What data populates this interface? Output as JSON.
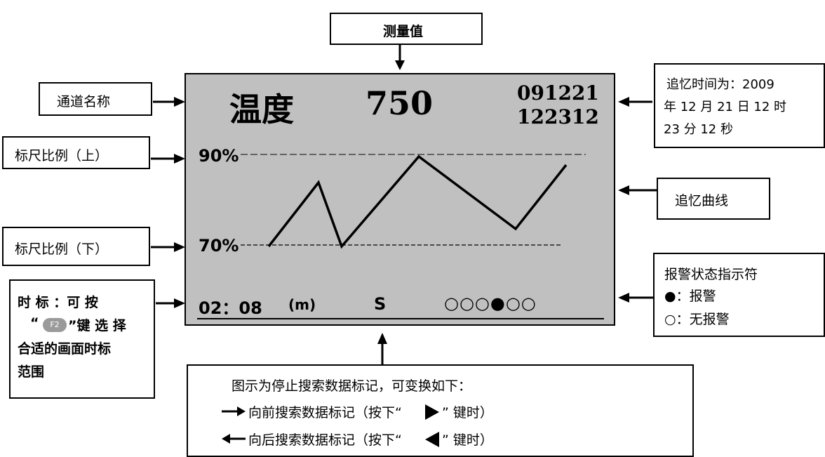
{
  "top_label": "测量值",
  "left_labels": {
    "channel_name": "通道名称",
    "scale_upper": "标尺比例（上）",
    "scale_lower": "标尺比例（下）",
    "time_scale": [
      "时 标 ：可 按",
      "“",
      "”键 选 择",
      "合适的画面时标",
      "范围"
    ],
    "f2_key": "F2"
  },
  "right_labels": {
    "recall_time": [
      "追忆时间为：2009",
      "年 12 月 21 日 12 时",
      "23 分 12 秒"
    ],
    "recall_curve": "追忆曲线",
    "alarm": [
      "报警状态指示符",
      "●：报警",
      "○：无报警"
    ]
  },
  "bottom_labels": {
    "line1": "图示为停止搜索数据标记，可变换如下：",
    "line2": "向前搜索数据标记（按下“",
    "line2b": "” 键时）",
    "line3": "向后搜索数据标记（按下“",
    "line3b": "” 键时）"
  },
  "screen": {
    "channel": "温度",
    "value": "750",
    "date": "091221",
    "time": "122312",
    "upper_scale": "90%",
    "lower_scale": "70%",
    "timebase": "02：08",
    "unit": "(m)",
    "mode": "S",
    "alarm_indicators": [
      "○",
      "○",
      "○",
      "●",
      "○",
      "○"
    ]
  },
  "colors": {
    "screen_bg": "#c0c0c0",
    "f2_key_bg": "#9a9a9a"
  }
}
